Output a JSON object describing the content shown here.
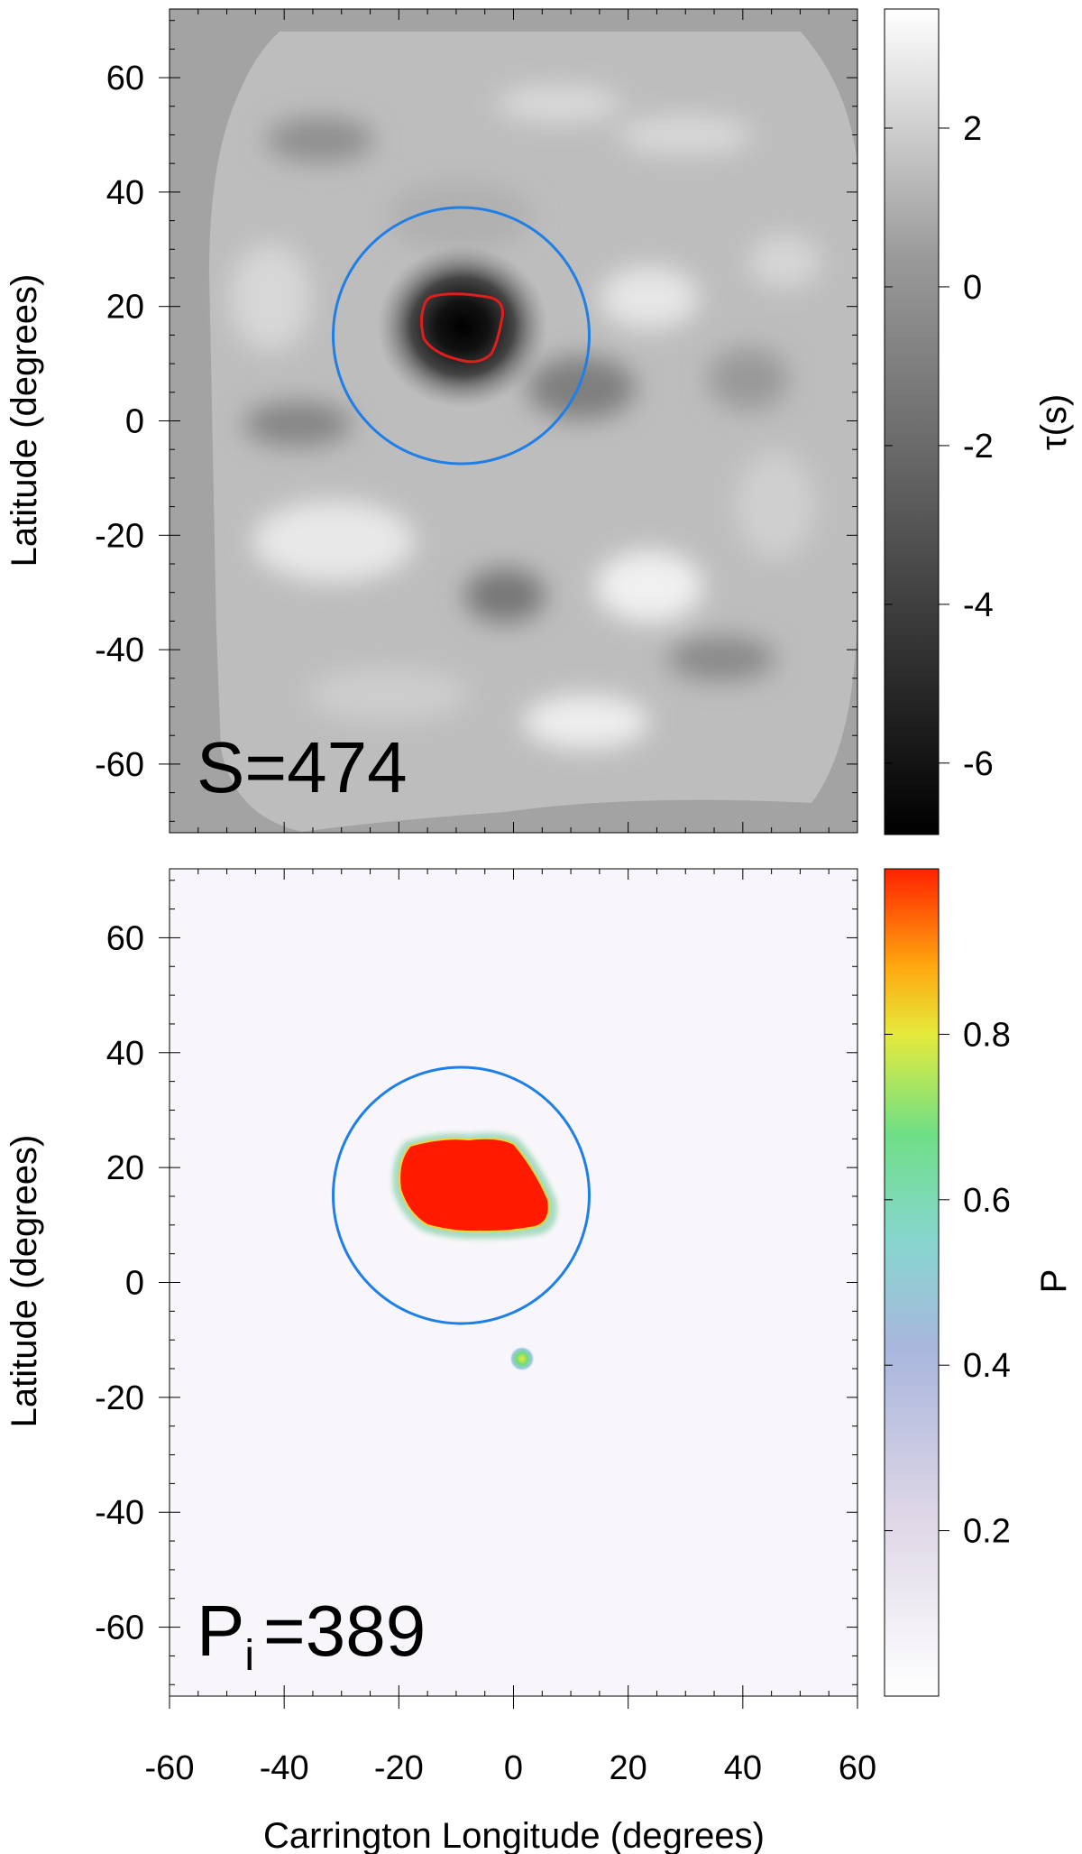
{
  "chart_data": [
    {
      "type": "heatmap",
      "panel": "top",
      "xlabel": "",
      "ylabel": "Latitude (degrees)",
      "xlim": [
        -60,
        60
      ],
      "ylim": [
        -72,
        72
      ],
      "yticks": [
        -60,
        -40,
        -20,
        0,
        20,
        40,
        60
      ],
      "yticklabels": [
        "-60",
        "-40",
        "-20",
        "0",
        "20",
        "40",
        "60"
      ],
      "colorbar": {
        "label": "τ(s)",
        "range": [
          -6.9,
          3.5
        ],
        "ticks": [
          -6,
          -4,
          -2,
          0,
          2
        ],
        "ticklabels": [
          "-6",
          "-4",
          "-2",
          "0",
          "2"
        ],
        "colormap": "gray"
      },
      "annotation": "S=474",
      "features": {
        "circle": {
          "center_lon": -9,
          "center_lat": 15,
          "radius_deg": 22.5,
          "color": "#1f7fe6"
        },
        "dark_core": {
          "center_lon": -9,
          "center_lat": 17,
          "min_tau": -6.9
        },
        "contour_color": "#e11d1d"
      }
    },
    {
      "type": "heatmap",
      "panel": "bottom",
      "xlabel": "Carrington Longitude (degrees)",
      "ylabel": "Latitude (degrees)",
      "xlim": [
        -60,
        60
      ],
      "ylim": [
        -72,
        72
      ],
      "xticks": [
        -60,
        -40,
        -20,
        0,
        20,
        40,
        60
      ],
      "xticklabels": [
        "-60",
        "-40",
        "-20",
        "0",
        "20",
        "40",
        "60"
      ],
      "yticks": [
        -60,
        -40,
        -20,
        0,
        20,
        40,
        60
      ],
      "yticklabels": [
        "-60",
        "-40",
        "-20",
        "0",
        "20",
        "40",
        "60"
      ],
      "colorbar": {
        "label": "P",
        "range": [
          0,
          1
        ],
        "ticks": [
          0.2,
          0.4,
          0.6,
          0.8
        ],
        "ticklabels": [
          "0.2",
          "0.4",
          "0.6",
          "0.8"
        ],
        "colormap": "white-purple-cyan-green-yellow-red"
      },
      "annotation": {
        "main": "P",
        "sub": "i",
        "rest": "=389"
      },
      "features": {
        "circle": {
          "center_lon": -9,
          "center_lat": 15,
          "radius_deg": 22.5,
          "color": "#1f7fe6"
        },
        "main_region": {
          "center_lon": -7,
          "center_lat": 17,
          "probability": 1.0,
          "color": "#ff1a00"
        },
        "small_spot": {
          "lon": 1.5,
          "lat": -13.5,
          "probability": 0.8
        }
      }
    }
  ]
}
